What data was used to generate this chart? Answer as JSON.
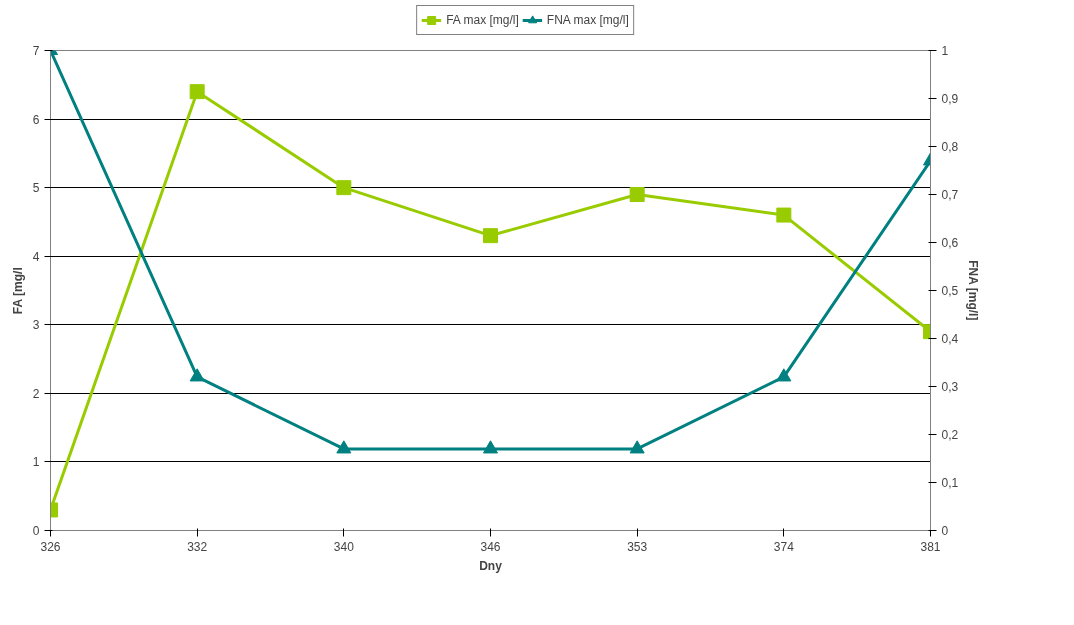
{
  "chart_data": {
    "type": "line",
    "xlabel": "Dny",
    "ylabel": "FA [mg/l",
    "y2label": "FNA [mg/l]",
    "categories": [
      "326",
      "332",
      "340",
      "346",
      "353",
      "374",
      "381"
    ],
    "series": [
      {
        "name": "FA max [mg/l]",
        "color": "#99cc00",
        "marker": "square",
        "values": [
          0.3,
          6.4,
          5.0,
          4.3,
          4.9,
          4.6,
          2.9
        ]
      },
      {
        "name": "FNA max [mg/l]",
        "color": "#008080",
        "marker": "triangle",
        "axis": "y2",
        "values": [
          1.0,
          0.32,
          0.17,
          0.17,
          0.17,
          0.32,
          0.77
        ]
      }
    ],
    "ylim": [
      0,
      7
    ],
    "yticks": [
      0,
      1,
      2,
      3,
      4,
      5,
      6,
      7
    ],
    "y2lim": [
      0,
      1
    ],
    "y2ticks": [
      0,
      {
        "value": 0.1,
        "label": "0,1"
      },
      {
        "value": 0.2,
        "label": "0,2"
      },
      {
        "value": 0.3,
        "label": "0,3"
      },
      {
        "value": 0.4,
        "label": "0,4"
      },
      {
        "value": 0.5,
        "label": "0,5"
      },
      {
        "value": 0.6,
        "label": "0,6"
      },
      {
        "value": 0.7,
        "label": "0,7"
      },
      {
        "value": 0.8,
        "label": "0,8"
      },
      {
        "value": 0.9,
        "label": "0,9"
      },
      1
    ],
    "grid": "y",
    "legend": "top"
  }
}
